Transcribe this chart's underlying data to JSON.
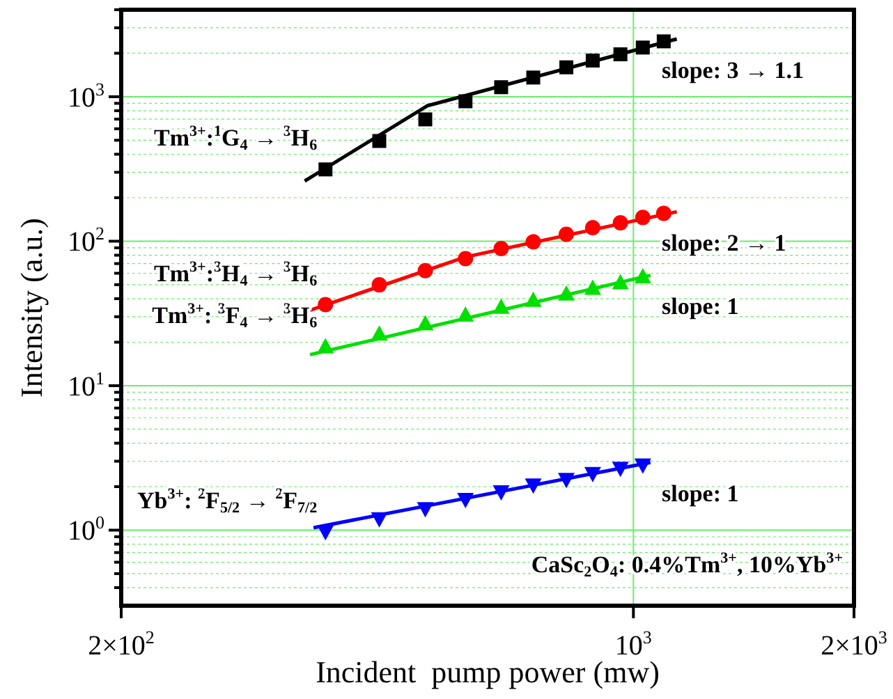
{
  "chart_data": {
    "type": "scatter",
    "xlabel": "Incident  pump power (mw)",
    "ylabel": "Intensity (a.u.)",
    "log": "xy",
    "grid": true,
    "xlim": [
      200,
      2000
    ],
    "xticks": [
      {
        "value": 200,
        "label": "2×10$^{2}$"
      },
      {
        "value": 1000,
        "label": "10$^{3}$"
      },
      {
        "value": 2000,
        "label": "2×10$^{3}$"
      }
    ],
    "ylim": [
      0.3,
      4000
    ],
    "yticks": [
      {
        "value": 0.4,
        "label": null
      },
      {
        "value": 0.5,
        "label": null
      },
      {
        "value": 0.6,
        "label": null
      },
      {
        "value": 0.7,
        "label": null
      },
      {
        "value": 0.8,
        "label": null
      },
      {
        "value": 0.9,
        "label": null
      },
      {
        "value": 1,
        "label": "10$^{0}$"
      },
      {
        "value": 2,
        "label": null
      },
      {
        "value": 3,
        "label": null
      },
      {
        "value": 4,
        "label": null
      },
      {
        "value": 5,
        "label": null
      },
      {
        "value": 6,
        "label": null
      },
      {
        "value": 7,
        "label": null
      },
      {
        "value": 8,
        "label": null
      },
      {
        "value": 9,
        "label": null
      },
      {
        "value": 10,
        "label": "10$^{1}$"
      },
      {
        "value": 20,
        "label": null
      },
      {
        "value": 30,
        "label": null
      },
      {
        "value": 40,
        "label": null
      },
      {
        "value": 50,
        "label": null
      },
      {
        "value": 60,
        "label": null
      },
      {
        "value": 70,
        "label": null
      },
      {
        "value": 80,
        "label": null
      },
      {
        "value": 90,
        "label": null
      },
      {
        "value": 100,
        "label": "10$^{2}$"
      },
      {
        "value": 200,
        "label": null
      },
      {
        "value": 300,
        "label": null
      },
      {
        "value": 400,
        "label": null
      },
      {
        "value": 500,
        "label": null
      },
      {
        "value": 600,
        "label": null
      },
      {
        "value": 700,
        "label": null
      },
      {
        "value": 800,
        "label": null
      },
      {
        "value": 900,
        "label": null
      },
      {
        "value": 1000,
        "label": "10$^{3}$"
      },
      {
        "value": 2000,
        "label": null
      },
      {
        "value": 3000,
        "label": null
      },
      {
        "value": 4000,
        "label": null
      }
    ],
    "x": [
      380,
      450,
      520,
      590,
      660,
      730,
      810,
      880,
      960,
      1030,
      1100
    ],
    "series": [
      {
        "name": "Tm$^{3+}$:$^{1}$G$_{4}$ → $^{3}$H$_{6}$",
        "color": "#000000",
        "marker": "square",
        "values": [
          314,
          494,
          697,
          930,
          1164,
          1358,
          1598,
          1780,
          1966,
          2190,
          2417
        ]
      },
      {
        "type": "line",
        "color": "#000000",
        "marker": "none",
        "x": [
          356,
          523,
          1146
        ],
        "values": [
          261,
          865,
          2510
        ]
      },
      {
        "name": "Tm$^{3+}$:$^{3}$H$_{4}$ → $^{3}$H$_{6}$",
        "color": "#ff0000",
        "marker": "circle",
        "values": [
          36.4,
          49.9,
          62.6,
          75.7,
          89,
          99,
          111.6,
          124,
          134,
          146,
          156
        ]
      },
      {
        "type": "line",
        "color": "#ff0000",
        "marker": "none",
        "x": [
          362,
          590,
          1146
        ],
        "values": [
          33.3,
          77.8,
          160
        ]
      },
      {
        "name": "Tm$^{3+}$: $^{3}$F$_{4}$ → $^{3}$H$_{6}$",
        "color": "#00e000",
        "marker": "triangle",
        "x": [
          380,
          450,
          520,
          590,
          660,
          730,
          810,
          880,
          960,
          1030
        ],
        "values": [
          18.7,
          22.9,
          27.0,
          31.0,
          35.1,
          39.2,
          43.4,
          47.5,
          52.0,
          57.0
        ]
      },
      {
        "type": "line",
        "color": "#00e000",
        "marker": "none",
        "x": [
          362,
          1055
        ],
        "values": [
          16.4,
          58.1
        ]
      },
      {
        "name": "Yb$^{3+}$: $^{2}$F$_{5/2}$ → $^{2}$F$_{7/2}$",
        "color": "#0000ff",
        "marker": "triangle-down",
        "x": [
          380,
          450,
          520,
          590,
          660,
          730,
          810,
          880,
          960,
          1030
        ],
        "values": [
          0.97,
          1.19,
          1.4,
          1.62,
          1.83,
          2.04,
          2.23,
          2.45,
          2.66,
          2.81
        ]
      },
      {
        "type": "line",
        "color": "#0000ff",
        "marker": "none",
        "x": [
          366,
          1055
        ],
        "values": [
          1.04,
          2.94
        ]
      }
    ],
    "annotations": [
      "slope: 3 → 1.1",
      "slope: 2 → 1",
      "slope: 1",
      "slope: 1",
      "CaSc$_{2}$O$_{4}$: 0.4%Tm$^{3+}$, 10%Yb$^{3+}$"
    ]
  }
}
